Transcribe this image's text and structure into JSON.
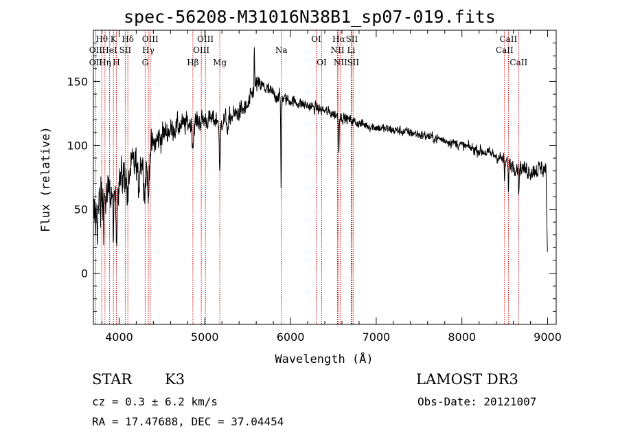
{
  "title": "spec-56208-M31016N38B1_sp07-019.fits",
  "info": {
    "class": "STAR",
    "subclass": "K3",
    "survey": "LAMOST DR3",
    "cz": "cz = 0.3 ± 6.2 km/s",
    "obs_date": "Obs-Date: 20121007",
    "coords": "RA =  17.47688, DEC =  37.04454"
  },
  "chart_data": {
    "type": "line",
    "title": "spec-56208-M31016N38B1_sp07-019.fits",
    "xlabel": "Wavelength (Å)",
    "ylabel": "Flux (relative)",
    "xlim": [
      3700,
      9100
    ],
    "ylim": [
      -40,
      190
    ],
    "xticks": [
      4000,
      5000,
      6000,
      7000,
      8000,
      9000
    ],
    "xtick_labels": [
      "4000",
      "5000",
      "6000",
      "7000",
      "8000",
      "9000"
    ],
    "yticks": [
      0,
      50,
      100,
      150
    ],
    "ytick_labels": [
      "0",
      "50",
      "100",
      "150"
    ],
    "line_color": "#000000",
    "marker_color": "#cc0000",
    "continuum": [
      [
        3700,
        40
      ],
      [
        3800,
        55
      ],
      [
        3900,
        62
      ],
      [
        4000,
        72
      ],
      [
        4100,
        80
      ],
      [
        4200,
        86
      ],
      [
        4300,
        90
      ],
      [
        4400,
        100
      ],
      [
        4500,
        108
      ],
      [
        4600,
        112
      ],
      [
        4700,
        115
      ],
      [
        4800,
        117
      ],
      [
        4900,
        118
      ],
      [
        5000,
        120
      ],
      [
        5100,
        120
      ],
      [
        5200,
        119
      ],
      [
        5300,
        122
      ],
      [
        5400,
        126
      ],
      [
        5500,
        130
      ],
      [
        5600,
        148
      ],
      [
        5700,
        145
      ],
      [
        5800,
        140
      ],
      [
        5900,
        137
      ],
      [
        6000,
        135
      ],
      [
        6200,
        131
      ],
      [
        6400,
        127
      ],
      [
        6600,
        122
      ],
      [
        6800,
        117
      ],
      [
        7000,
        114
      ],
      [
        7200,
        112
      ],
      [
        7400,
        110
      ],
      [
        7600,
        107
      ],
      [
        7800,
        104
      ],
      [
        8000,
        100
      ],
      [
        8200,
        96
      ],
      [
        8400,
        92
      ],
      [
        8600,
        84
      ],
      [
        8800,
        80
      ],
      [
        8950,
        82
      ],
      [
        9000,
        80
      ]
    ],
    "absorption": [
      [
        3934,
        30,
        8
      ],
      [
        3969,
        35,
        8
      ],
      [
        4102,
        25,
        10
      ],
      [
        4226,
        20,
        10
      ],
      [
        4300,
        25,
        12
      ],
      [
        4340,
        40,
        8
      ],
      [
        4861,
        18,
        8
      ],
      [
        5175,
        45,
        6
      ],
      [
        5270,
        10,
        8
      ],
      [
        5890,
        70,
        4
      ],
      [
        6563,
        30,
        4
      ],
      [
        8498,
        15,
        4
      ],
      [
        8542,
        20,
        4
      ],
      [
        8662,
        20,
        4
      ]
    ],
    "emission": [
      [
        5577,
        35,
        3
      ]
    ],
    "noise_amp": [
      [
        3700,
        35
      ],
      [
        3800,
        35
      ],
      [
        3900,
        22
      ],
      [
        4100,
        20
      ],
      [
        4300,
        18
      ],
      [
        4600,
        12
      ],
      [
        5000,
        10
      ],
      [
        5500,
        10
      ],
      [
        6000,
        6
      ],
      [
        7000,
        5
      ],
      [
        8000,
        5
      ],
      [
        8500,
        7
      ],
      [
        8800,
        9
      ],
      [
        9000,
        10
      ]
    ],
    "tail_drop": [
      [
        8985,
        60
      ],
      [
        9000,
        10
      ]
    ],
    "lines": [
      {
        "label": "Hθ",
        "wave": 3798,
        "row": 0
      },
      {
        "label": "OII",
        "wave": 3727,
        "row": 1
      },
      {
        "label": "OII",
        "wave": 3727,
        "row": 2
      },
      {
        "label": "Hη",
        "wave": 3835,
        "row": 2
      },
      {
        "label": "HeI",
        "wave": 3889,
        "row": 1
      },
      {
        "label": "K",
        "wave": 3934,
        "row": 0
      },
      {
        "label": "H",
        "wave": 3969,
        "row": 2
      },
      {
        "label": "SII",
        "wave": 4072,
        "row": 1
      },
      {
        "label": "Hδ",
        "wave": 4102,
        "row": 0
      },
      {
        "label": "G",
        "wave": 4304,
        "row": 2
      },
      {
        "label": "OIII",
        "wave": 4363,
        "row": 0
      },
      {
        "label": "Hγ",
        "wave": 4341,
        "row": 1
      },
      {
        "label": "Hβ",
        "wave": 4861,
        "row": 2
      },
      {
        "label": "OIII",
        "wave": 5007,
        "row": 0
      },
      {
        "label": "OIII",
        "wave": 4959,
        "row": 1
      },
      {
        "label": "Mg",
        "wave": 5175,
        "row": 2
      },
      {
        "label": "Na",
        "wave": 5893,
        "row": 1
      },
      {
        "label": "OI",
        "wave": 6300,
        "row": 0
      },
      {
        "label": "OI",
        "wave": 6364,
        "row": 2
      },
      {
        "label": "Hα",
        "wave": 6563,
        "row": 0
      },
      {
        "label": "NII",
        "wave": 6548,
        "row": 1
      },
      {
        "label": "NII",
        "wave": 6583,
        "row": 2
      },
      {
        "label": "SII",
        "wave": 6716,
        "row": 0
      },
      {
        "label": "Li",
        "wave": 6708,
        "row": 1
      },
      {
        "label": "SII",
        "wave": 6731,
        "row": 2
      },
      {
        "label": "CaII",
        "wave": 8542,
        "row": 0
      },
      {
        "label": "CaII",
        "wave": 8498,
        "row": 1
      },
      {
        "label": "CaII",
        "wave": 8662,
        "row": 2
      }
    ]
  }
}
